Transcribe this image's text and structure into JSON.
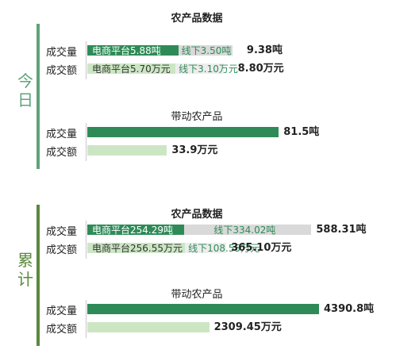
{
  "colors": {
    "accent": "#2e8b57",
    "side_bar": "#5fa37a",
    "side_bar_cumulative": "#5a8a3c",
    "volume_online": "#2e8b57",
    "volume_offline": "#d9d9d9",
    "amount_online": "#cce6c4",
    "amount_offline": "#ededed",
    "online_text_on_dark": "#ffffff",
    "online_text_on_light": "#333333",
    "offline_text": "#2e8b57"
  },
  "chart_data": [
    {
      "type": "bar",
      "group": "今日",
      "title": "农产品数据",
      "orientation": "horizontal",
      "stacked": true,
      "rows": [
        {
          "label": "成交量",
          "kind": "volume",
          "segments": [
            {
              "label": "电商平台5.88吨",
              "value": 5.88
            },
            {
              "label": "线下3.50吨",
              "value": 3.5
            }
          ],
          "total_label": "9.38吨",
          "total": 9.38
        },
        {
          "label": "成交额",
          "kind": "amount",
          "segments": [
            {
              "label": "电商平台5.70万元",
              "value": 5.7
            },
            {
              "label": "线下3.10万元",
              "value": 3.1
            }
          ],
          "total_label": "8.80万元",
          "total": 8.8
        }
      ]
    },
    {
      "type": "bar",
      "group": "今日",
      "title": "带动农产品",
      "orientation": "horizontal",
      "rows": [
        {
          "label": "成交量",
          "kind": "volume",
          "value": 81.5,
          "total_label": "81.5吨"
        },
        {
          "label": "成交额",
          "kind": "amount",
          "value": 33.9,
          "total_label": "33.9万元"
        }
      ]
    },
    {
      "type": "bar",
      "group": "累计",
      "title": "农产品数据",
      "orientation": "horizontal",
      "stacked": true,
      "rows": [
        {
          "label": "成交量",
          "kind": "volume",
          "segments": [
            {
              "label": "电商平台254.29吨",
              "value": 254.29
            },
            {
              "label": "线下334.02吨",
              "value": 334.02
            }
          ],
          "total_label": "588.31吨",
          "total": 588.31
        },
        {
          "label": "成交额",
          "kind": "amount",
          "segments": [
            {
              "label": "电商平台256.55万元",
              "value": 256.55
            },
            {
              "label": "线下108.55万元",
              "value": 108.55
            }
          ],
          "total_label": "365.10万元",
          "total": 365.1
        }
      ]
    },
    {
      "type": "bar",
      "group": "累计",
      "title": "带动农产品",
      "orientation": "horizontal",
      "rows": [
        {
          "label": "成交量",
          "kind": "volume",
          "value": 4390.8,
          "total_label": "4390.8吨"
        },
        {
          "label": "成交额",
          "kind": "amount",
          "value": 2309.45,
          "total_label": "2309.45万元"
        }
      ]
    }
  ]
}
